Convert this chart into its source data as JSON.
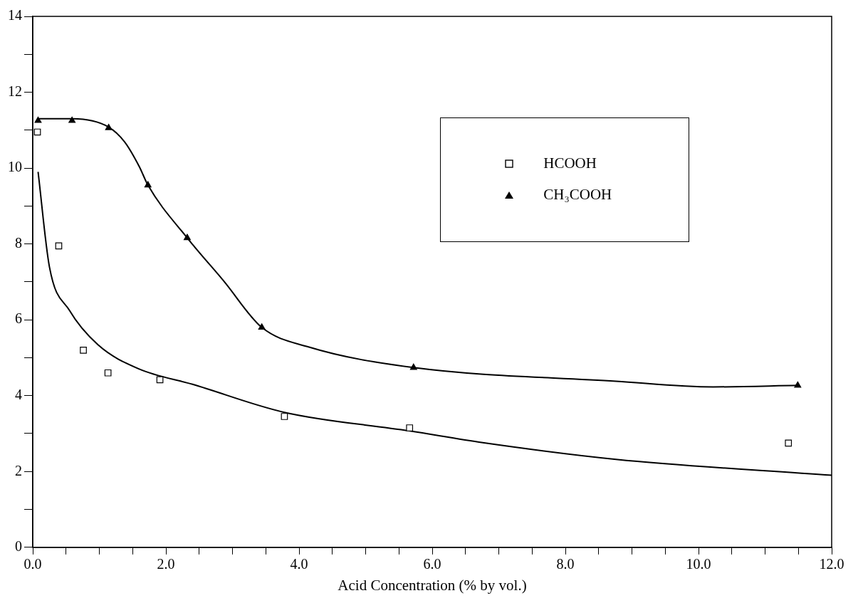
{
  "chart_data": {
    "type": "scatter",
    "xlabel": "Acid Concentration (% by vol.)",
    "xlim": [
      0,
      12
    ],
    "ylim": [
      0,
      14
    ],
    "xticks": [
      {
        "value": 0,
        "label": "0.0"
      },
      {
        "value": 0.5,
        "label": null
      },
      {
        "value": 1,
        "label": null
      },
      {
        "value": 1.5,
        "label": null
      },
      {
        "value": 2,
        "label": "2.0"
      },
      {
        "value": 2.5,
        "label": null
      },
      {
        "value": 3,
        "label": null
      },
      {
        "value": 3.5,
        "label": null
      },
      {
        "value": 4,
        "label": "4.0"
      },
      {
        "value": 4.5,
        "label": null
      },
      {
        "value": 5,
        "label": null
      },
      {
        "value": 5.5,
        "label": null
      },
      {
        "value": 6,
        "label": "6.0"
      },
      {
        "value": 6.5,
        "label": null
      },
      {
        "value": 7,
        "label": null
      },
      {
        "value": 7.5,
        "label": null
      },
      {
        "value": 8,
        "label": "8.0"
      },
      {
        "value": 8.5,
        "label": null
      },
      {
        "value": 9,
        "label": null
      },
      {
        "value": 9.5,
        "label": null
      },
      {
        "value": 10,
        "label": "10.0"
      },
      {
        "value": 10.5,
        "label": null
      },
      {
        "value": 11,
        "label": null
      },
      {
        "value": 11.5,
        "label": null
      },
      {
        "value": 12,
        "label": "12.0"
      }
    ],
    "yticks": [
      0,
      {
        "value": 1,
        "label": null
      },
      2,
      {
        "value": 3,
        "label": null
      },
      4,
      {
        "value": 5,
        "label": null
      },
      6,
      {
        "value": 7,
        "label": null
      },
      8,
      {
        "value": 9,
        "label": null
      },
      10,
      {
        "value": 11,
        "label": null
      },
      12,
      {
        "value": 13,
        "label": null
      },
      14
    ],
    "grid": false,
    "legend": "top right",
    "series": [
      {
        "name": "HCOOH",
        "marker": "square",
        "color": "#000000",
        "x": [
          0.07,
          0.39,
          0.76,
          1.13,
          1.91,
          3.78,
          5.66,
          11.35
        ],
        "values": [
          10.95,
          7.95,
          5.2,
          4.6,
          4.42,
          3.45,
          3.15,
          2.75
        ]
      },
      {
        "name": "CH₃COOH",
        "marker": "triangle",
        "color": "#000000",
        "x": [
          0.08,
          0.59,
          1.14,
          1.73,
          2.32,
          3.44,
          5.72,
          11.49
        ],
        "values": [
          11.25,
          11.25,
          11.06,
          9.55,
          8.16,
          5.8,
          4.74,
          4.27
        ]
      },
      {
        "type": "line",
        "marker": "none",
        "color": "#000000",
        "x": [
          0.08,
          0.25,
          0.55,
          0.98,
          1.6,
          2.4,
          3.78,
          5.66,
          6.76,
          8.76,
          12
        ],
        "values": [
          9.9,
          7.4,
          6.25,
          5.34,
          4.7,
          4.3,
          3.56,
          3.07,
          2.76,
          2.32,
          1.9
        ]
      },
      {
        "type": "line",
        "marker": "none",
        "color": "#000000",
        "x": [
          0.08,
          0.6,
          1.14,
          1.38,
          1.6,
          1.73,
          2.32,
          2.87,
          3.44,
          4.15,
          5.72,
          8.76,
          10.22,
          11.49
        ],
        "values": [
          11.3,
          11.3,
          11.08,
          10.69,
          10.04,
          9.55,
          8.16,
          7.02,
          5.8,
          5.28,
          4.74,
          4.38,
          4.23,
          4.27
        ]
      }
    ]
  }
}
